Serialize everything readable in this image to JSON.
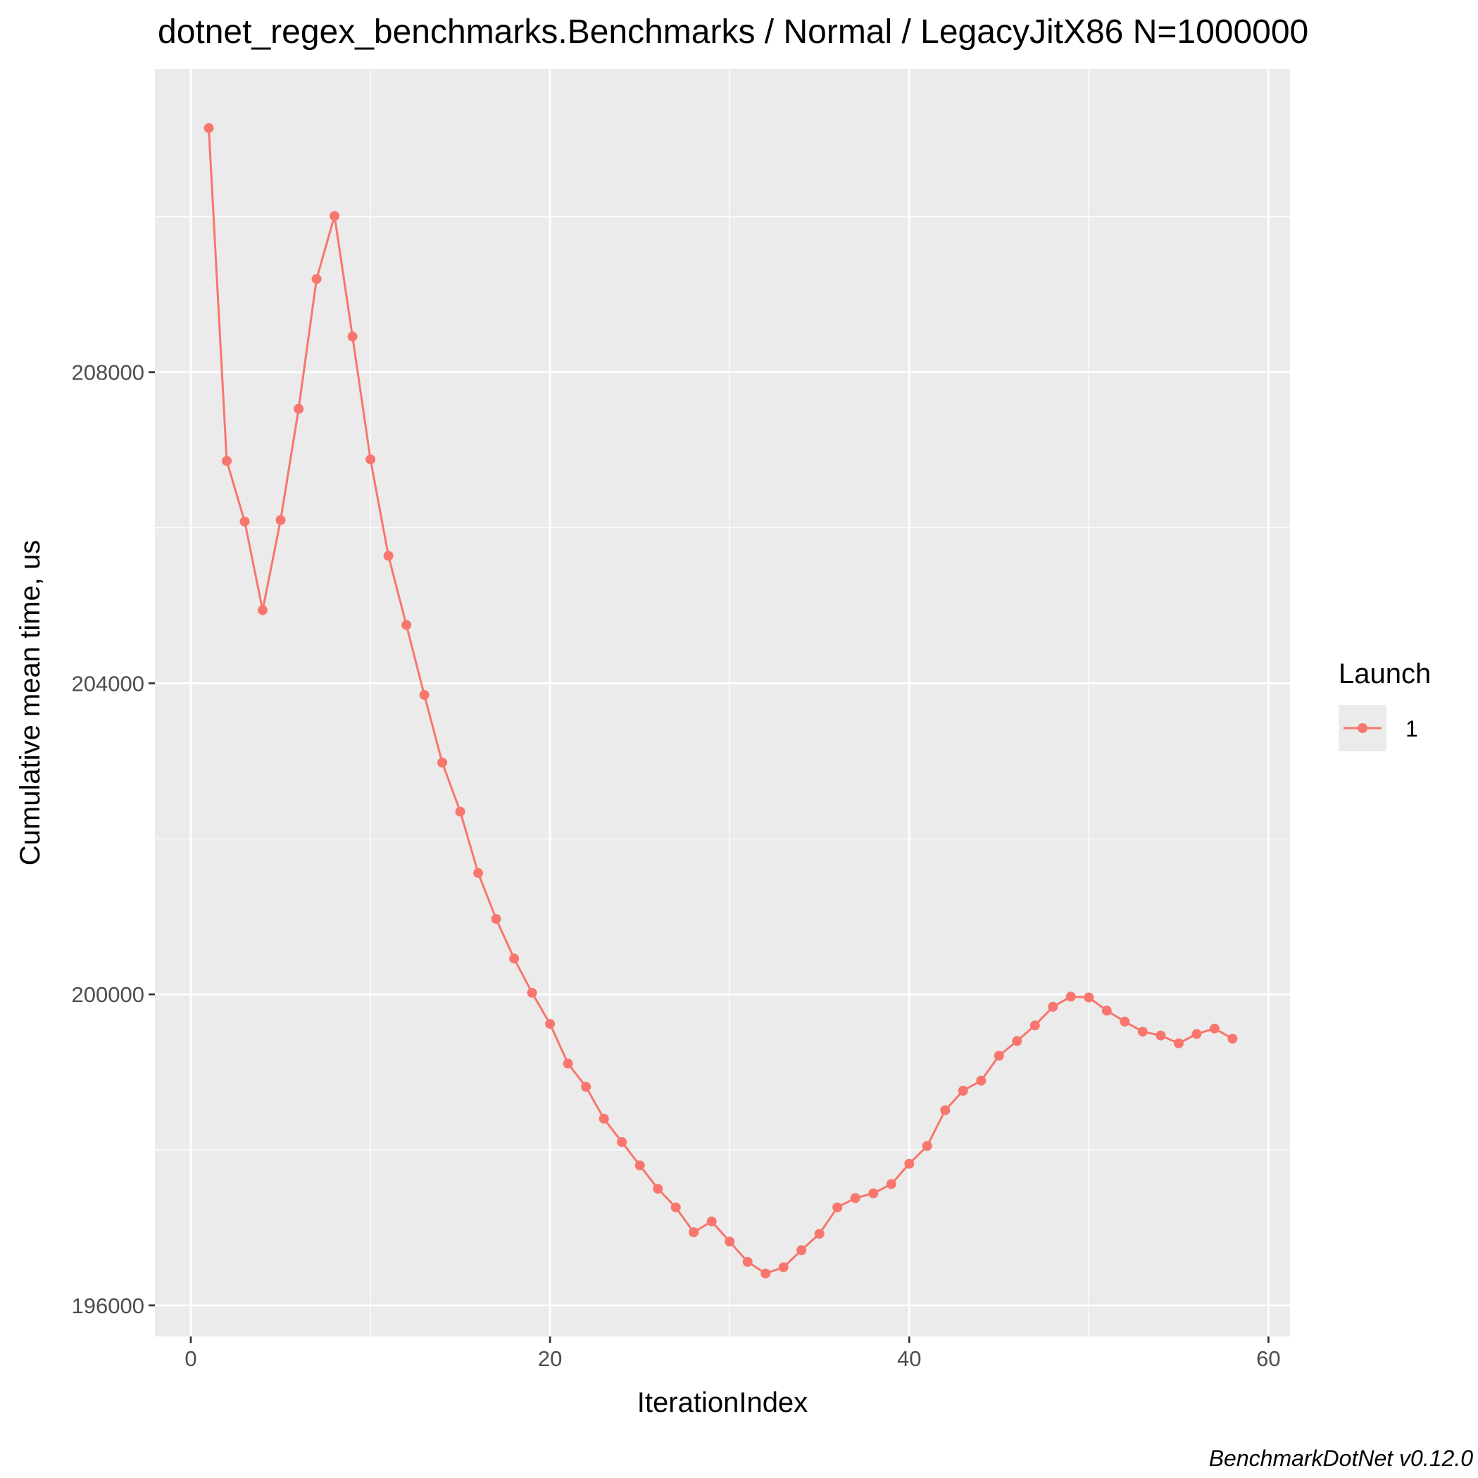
{
  "chart_data": {
    "type": "line",
    "title": "dotnet_regex_benchmarks.Benchmarks / Normal / LegacyJitX86 N=1000000",
    "xlabel": "IterationIndex",
    "ylabel": "Cumulative mean time, us",
    "caption": "BenchmarkDotNet v0.12.0",
    "xlim": [
      -2,
      61.2
    ],
    "ylim": [
      195600,
      211900
    ],
    "x_ticks": [
      0,
      20,
      40,
      60
    ],
    "x_tick_labels": [
      "0",
      "20",
      "40",
      "60"
    ],
    "y_ticks": [
      196000,
      200000,
      204000,
      208000
    ],
    "y_tick_labels": [
      "196000",
      "200000",
      "204000",
      "208000"
    ],
    "x_minor_ticks": [
      10,
      30,
      50
    ],
    "y_minor_ticks": [
      198000,
      202000,
      206000,
      210000
    ],
    "grid": true,
    "legend": {
      "title": "Launch",
      "position": "right",
      "entries": [
        {
          "label": "1",
          "color": "#F8766D"
        }
      ]
    },
    "series": [
      {
        "name": "1",
        "color": "#F8766D",
        "x": [
          1,
          2,
          3,
          4,
          5,
          6,
          7,
          8,
          9,
          10,
          11,
          12,
          13,
          14,
          15,
          16,
          17,
          18,
          19,
          20,
          21,
          22,
          23,
          24,
          25,
          26,
          27,
          28,
          29,
          30,
          31,
          32,
          33,
          34,
          35,
          36,
          37,
          38,
          39,
          40,
          41,
          42,
          43,
          44,
          45,
          46,
          47,
          48,
          49,
          50,
          51,
          52,
          53,
          54,
          55,
          56,
          57,
          58
        ],
        "y": [
          211140,
          206860,
          206080,
          204940,
          206100,
          207530,
          209200,
          210010,
          208460,
          206880,
          205640,
          204750,
          203850,
          202980,
          202350,
          201560,
          200970,
          200460,
          200020,
          199620,
          199110,
          198810,
          198400,
          198100,
          197800,
          197500,
          197260,
          196940,
          197080,
          196820,
          196560,
          196410,
          196490,
          196710,
          196920,
          197260,
          197380,
          197440,
          197560,
          197820,
          198050,
          198510,
          198760,
          198890,
          199210,
          199400,
          199600,
          199840,
          199970,
          199960,
          199790,
          199650,
          199520,
          199470,
          199370,
          199490,
          199560,
          199430
        ]
      }
    ]
  }
}
